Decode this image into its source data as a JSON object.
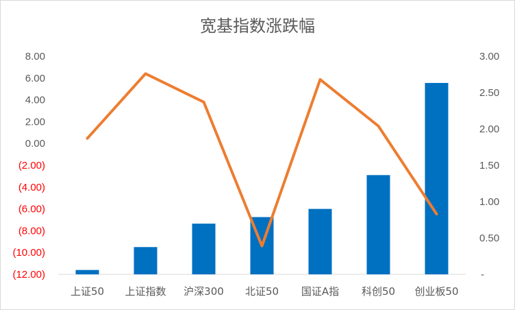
{
  "chart_data": {
    "type": "bar+line",
    "title": "宽基指数涨跌幅",
    "categories": [
      "上证50",
      "上证指数",
      "沪深300",
      "北证50",
      "国证A指",
      "科创50",
      "创业板50"
    ],
    "series": [
      {
        "type": "bar",
        "axis": "left",
        "values": [
          -11.6,
          -9.5,
          -7.35,
          -6.75,
          -6.0,
          -2.9,
          5.55
        ]
      },
      {
        "type": "line",
        "axis": "right",
        "values": [
          1.87,
          2.76,
          2.37,
          0.39,
          2.68,
          2.04,
          0.83
        ]
      }
    ],
    "y_left": {
      "ylim": [
        -12,
        8
      ],
      "ticks": [
        8,
        6,
        4,
        2,
        0,
        -2,
        -4,
        -6,
        -8,
        -10,
        -12
      ],
      "tick_labels": [
        "8.00",
        "6.00",
        "4.00",
        "2.00",
        "0.00",
        "(2.00)",
        "(4.00)",
        "(6.00)",
        "(8.00)",
        "(10.00)",
        "(12.00)"
      ]
    },
    "y_right": {
      "ylim": [
        0,
        3
      ],
      "ticks": [
        3,
        2.5,
        2,
        1.5,
        1,
        0.5,
        0
      ],
      "tick_labels": [
        "3.00",
        "2.50",
        "2.00",
        "1.50",
        "1.00",
        "0.50",
        "-"
      ]
    },
    "colors": {
      "bar": "#0070c0",
      "line": "#ed7d31",
      "grid": "#d9d9d9",
      "negative_tick": "#ff0000"
    },
    "grid": false,
    "legend": "none"
  }
}
